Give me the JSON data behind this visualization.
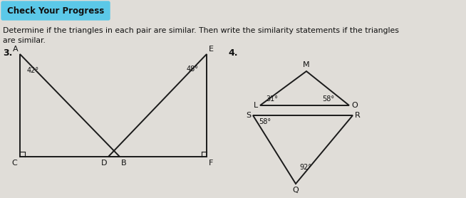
{
  "bg_color": "#d8d8d8",
  "page_color": "#e0ddd8",
  "header_text": "Check Your Progress",
  "header_bg": "#5bc8e8",
  "header_text_color": "#111111",
  "instruction_line1": "Determine if the triangles in each pair are similar. Then write the similarity statements if the triangles",
  "instruction_line2": "are similar.",
  "problem3_label": "3.",
  "problem4_label": "4.",
  "triangle_color": "#1a1a1a",
  "angle_42": "42°",
  "angle_48": "48°",
  "label_A": "A",
  "label_C": "C",
  "label_B": "B",
  "label_D": "D",
  "label_E": "E",
  "label_F": "F",
  "angle_31": "31°",
  "angle_58_O": "58°",
  "angle_58_S": "58°",
  "angle_92": "92°",
  "label_M": "M",
  "label_L": "L",
  "label_O": "O",
  "label_S": "S",
  "label_R": "R",
  "label_Q": "Q",
  "figsize": [
    6.54,
    2.78
  ],
  "dpi": 100
}
